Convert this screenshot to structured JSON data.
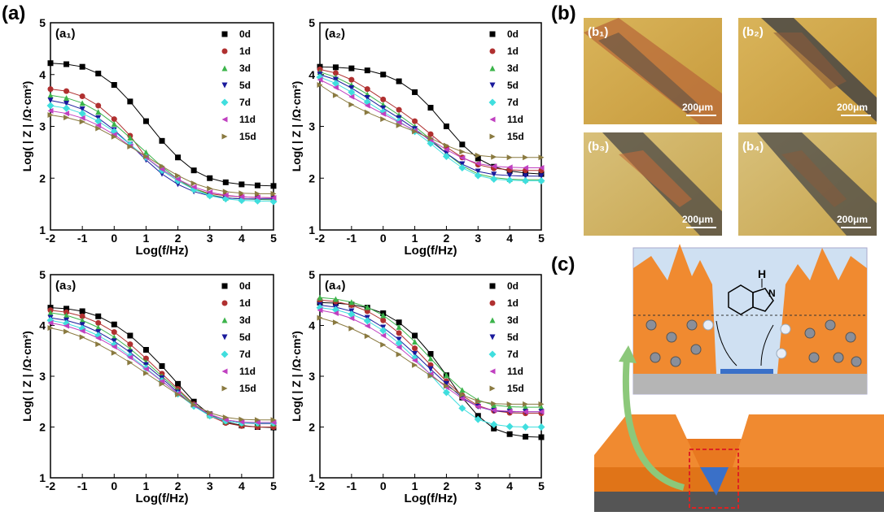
{
  "panels": {
    "a": "(a)",
    "b": "(b)",
    "c": "(c)"
  },
  "photos": [
    {
      "label": "(b₁)",
      "scale": "200μm"
    },
    {
      "label": "(b₂)",
      "scale": "200μm"
    },
    {
      "label": "(b₃)",
      "scale": "200μm"
    },
    {
      "label": "(b₄)",
      "scale": "200μm"
    }
  ],
  "diagram": {
    "atoms": [
      "H",
      "N"
    ]
  },
  "chart_data": [
    {
      "type": "line",
      "panel_label": "(a₁)",
      "xlabel": "Log(f/Hz)",
      "ylabel": "Log( | Z | /Ω·cm²)",
      "xlim": [
        -2,
        5
      ],
      "ylim": [
        1,
        5
      ],
      "xticks": [
        -2,
        -1,
        0,
        1,
        2,
        3,
        4,
        5
      ],
      "yticks": [
        1,
        2,
        3,
        4,
        5
      ],
      "x": [
        -2,
        -1.5,
        -1,
        -0.5,
        0,
        0.5,
        1,
        1.5,
        2,
        2.5,
        3,
        3.5,
        4,
        4.5,
        5
      ],
      "series": [
        {
          "name": "0d",
          "color": "#000000",
          "marker": "square",
          "values": [
            4.22,
            4.2,
            4.15,
            4.02,
            3.8,
            3.48,
            3.1,
            2.72,
            2.4,
            2.15,
            2.0,
            1.92,
            1.88,
            1.86,
            1.85
          ]
        },
        {
          "name": "1d",
          "color": "#b03030",
          "marker": "circle",
          "values": [
            3.72,
            3.68,
            3.58,
            3.4,
            3.14,
            2.82,
            2.4,
            2.15,
            1.95,
            1.8,
            1.7,
            1.66,
            1.64,
            1.63,
            1.62
          ]
        },
        {
          "name": "3d",
          "color": "#3cb44b",
          "marker": "triangle-up",
          "values": [
            3.6,
            3.55,
            3.45,
            3.28,
            3.05,
            2.78,
            2.5,
            2.22,
            1.98,
            1.8,
            1.68,
            1.62,
            1.6,
            1.59,
            1.58
          ]
        },
        {
          "name": "5d",
          "color": "#1a1a9c",
          "marker": "triangle-down",
          "values": [
            3.5,
            3.44,
            3.33,
            3.16,
            2.93,
            2.65,
            2.35,
            2.08,
            1.88,
            1.74,
            1.66,
            1.62,
            1.6,
            1.6,
            1.6
          ]
        },
        {
          "name": "7d",
          "color": "#40dede",
          "marker": "diamond",
          "values": [
            3.4,
            3.35,
            3.25,
            3.1,
            2.9,
            2.65,
            2.4,
            2.15,
            1.95,
            1.78,
            1.66,
            1.6,
            1.57,
            1.56,
            1.55
          ]
        },
        {
          "name": "11d",
          "color": "#c040c0",
          "marker": "triangle-left",
          "values": [
            3.3,
            3.25,
            3.16,
            3.02,
            2.84,
            2.62,
            2.4,
            2.17,
            1.98,
            1.83,
            1.73,
            1.67,
            1.64,
            1.63,
            1.62
          ]
        },
        {
          "name": "15d",
          "color": "#8a7a40",
          "marker": "triangle-right",
          "values": [
            3.22,
            3.17,
            3.09,
            2.96,
            2.8,
            2.61,
            2.42,
            2.23,
            2.05,
            1.9,
            1.8,
            1.74,
            1.71,
            1.7,
            1.7
          ]
        }
      ]
    },
    {
      "type": "line",
      "panel_label": "(a₂)",
      "xlabel": "Log(f/Hz)",
      "ylabel": "Log( | Z | /Ω·cm²)",
      "xlim": [
        -2,
        5
      ],
      "ylim": [
        1,
        5
      ],
      "xticks": [
        -2,
        -1,
        0,
        1,
        2,
        3,
        4,
        5
      ],
      "yticks": [
        1,
        2,
        3,
        4,
        5
      ],
      "x": [
        -2,
        -1.5,
        -1,
        -0.5,
        0,
        0.5,
        1,
        1.5,
        2,
        2.5,
        3,
        3.5,
        4,
        4.5,
        5
      ],
      "series": [
        {
          "name": "0d",
          "color": "#000000",
          "marker": "square",
          "values": [
            4.15,
            4.14,
            4.12,
            4.08,
            4.0,
            3.87,
            3.66,
            3.36,
            3.0,
            2.65,
            2.38,
            2.22,
            2.14,
            2.1,
            2.08
          ]
        },
        {
          "name": "1d",
          "color": "#b03030",
          "marker": "circle",
          "values": [
            4.1,
            4.03,
            3.9,
            3.72,
            3.52,
            3.32,
            3.1,
            2.85,
            2.6,
            2.4,
            2.26,
            2.19,
            2.16,
            2.15,
            2.15
          ]
        },
        {
          "name": "3d",
          "color": "#3cb44b",
          "marker": "triangle-up",
          "values": [
            4.05,
            3.95,
            3.8,
            3.62,
            3.42,
            3.22,
            3.0,
            2.75,
            2.48,
            2.24,
            2.08,
            2.01,
            1.98,
            1.97,
            1.97
          ]
        },
        {
          "name": "5d",
          "color": "#1a1a9c",
          "marker": "triangle-down",
          "values": [
            4.0,
            3.9,
            3.74,
            3.55,
            3.35,
            3.16,
            2.95,
            2.72,
            2.48,
            2.27,
            2.13,
            2.07,
            2.05,
            2.04,
            2.04
          ]
        },
        {
          "name": "7d",
          "color": "#40dede",
          "marker": "diamond",
          "values": [
            3.95,
            3.83,
            3.66,
            3.47,
            3.28,
            3.1,
            2.9,
            2.67,
            2.42,
            2.2,
            2.05,
            1.98,
            1.96,
            1.95,
            1.95
          ]
        },
        {
          "name": "11d",
          "color": "#c040c0",
          "marker": "triangle-left",
          "values": [
            3.9,
            3.75,
            3.57,
            3.4,
            3.24,
            3.08,
            2.92,
            2.74,
            2.55,
            2.39,
            2.28,
            2.23,
            2.21,
            2.2,
            2.2
          ]
        },
        {
          "name": "15d",
          "color": "#8a7a40",
          "marker": "triangle-right",
          "values": [
            3.8,
            3.6,
            3.42,
            3.27,
            3.14,
            3.02,
            2.9,
            2.77,
            2.63,
            2.51,
            2.44,
            2.41,
            2.4,
            2.4,
            2.4
          ]
        }
      ]
    },
    {
      "type": "line",
      "panel_label": "(a₃)",
      "xlabel": "Log(f/Hz)",
      "ylabel": "Log( | Z | /Ω·cm²)",
      "xlim": [
        -2,
        5
      ],
      "ylim": [
        1,
        5
      ],
      "xticks": [
        -2,
        -1,
        0,
        1,
        2,
        3,
        4,
        5
      ],
      "yticks": [
        1,
        2,
        3,
        4,
        5
      ],
      "x": [
        -2,
        -1.5,
        -1,
        -0.5,
        0,
        0.5,
        1,
        1.5,
        2,
        2.5,
        3,
        3.5,
        4,
        4.5,
        5
      ],
      "series": [
        {
          "name": "0d",
          "color": "#000000",
          "marker": "square",
          "values": [
            4.35,
            4.33,
            4.28,
            4.18,
            4.02,
            3.8,
            3.52,
            3.2,
            2.85,
            2.5,
            2.25,
            2.1,
            2.03,
            2.0,
            1.99
          ]
        },
        {
          "name": "1d",
          "color": "#b03030",
          "marker": "circle",
          "values": [
            4.3,
            4.26,
            4.18,
            4.05,
            3.87,
            3.63,
            3.35,
            3.05,
            2.75,
            2.45,
            2.22,
            2.08,
            2.02,
            2.0,
            2.0
          ]
        },
        {
          "name": "3d",
          "color": "#3cb44b",
          "marker": "triangle-up",
          "values": [
            4.25,
            4.2,
            4.1,
            3.96,
            3.77,
            3.54,
            3.28,
            3.0,
            2.72,
            2.44,
            2.23,
            2.12,
            2.08,
            2.07,
            2.07
          ]
        },
        {
          "name": "5d",
          "color": "#1a1a9c",
          "marker": "triangle-down",
          "values": [
            4.15,
            4.1,
            4.01,
            3.87,
            3.69,
            3.47,
            3.22,
            2.96,
            2.68,
            2.42,
            2.22,
            2.12,
            2.08,
            2.07,
            2.07
          ]
        },
        {
          "name": "7d",
          "color": "#40dede",
          "marker": "diamond",
          "values": [
            4.1,
            4.04,
            3.94,
            3.8,
            3.62,
            3.4,
            3.16,
            2.91,
            2.65,
            2.41,
            2.22,
            2.12,
            2.08,
            2.08,
            2.08
          ]
        },
        {
          "name": "11d",
          "color": "#c040c0",
          "marker": "triangle-left",
          "values": [
            4.05,
            3.99,
            3.89,
            3.75,
            3.58,
            3.37,
            3.14,
            2.9,
            2.66,
            2.43,
            2.25,
            2.14,
            2.1,
            2.09,
            2.09
          ]
        },
        {
          "name": "15d",
          "color": "#8a7a40",
          "marker": "triangle-right",
          "values": [
            3.95,
            3.88,
            3.77,
            3.63,
            3.46,
            3.27,
            3.06,
            2.85,
            2.64,
            2.44,
            2.28,
            2.19,
            2.15,
            2.14,
            2.14
          ]
        }
      ]
    },
    {
      "type": "line",
      "panel_label": "(a₄)",
      "xlabel": "Log(f/Hz)",
      "ylabel": "Log( | Z | /Ω·cm²)",
      "xlim": [
        -2,
        5
      ],
      "ylim": [
        1,
        5
      ],
      "xticks": [
        -2,
        -1,
        0,
        1,
        2,
        3,
        4,
        5
      ],
      "yticks": [
        1,
        2,
        3,
        4,
        5
      ],
      "x": [
        -2,
        -1.5,
        -1,
        -0.5,
        0,
        0.5,
        1,
        1.5,
        2,
        2.5,
        3,
        3.5,
        4,
        4.5,
        5
      ],
      "series": [
        {
          "name": "0d",
          "color": "#000000",
          "marker": "square",
          "values": [
            4.45,
            4.44,
            4.41,
            4.35,
            4.24,
            4.06,
            3.8,
            3.44,
            3.02,
            2.58,
            2.22,
            1.97,
            1.86,
            1.81,
            1.8
          ]
        },
        {
          "name": "1d",
          "color": "#b03030",
          "marker": "circle",
          "values": [
            4.5,
            4.47,
            4.4,
            4.28,
            4.1,
            3.85,
            3.55,
            3.22,
            2.9,
            2.62,
            2.42,
            2.32,
            2.28,
            2.27,
            2.27
          ]
        },
        {
          "name": "3d",
          "color": "#3cb44b",
          "marker": "triangle-up",
          "values": [
            4.55,
            4.52,
            4.46,
            4.36,
            4.2,
            3.97,
            3.68,
            3.35,
            3.02,
            2.73,
            2.53,
            2.43,
            2.4,
            2.39,
            2.39
          ]
        },
        {
          "name": "5d",
          "color": "#1a1a9c",
          "marker": "triangle-down",
          "values": [
            4.4,
            4.36,
            4.28,
            4.15,
            3.96,
            3.72,
            3.44,
            3.14,
            2.85,
            2.58,
            2.4,
            2.32,
            2.3,
            2.3,
            2.3
          ]
        },
        {
          "name": "7d",
          "color": "#40dede",
          "marker": "diamond",
          "values": [
            4.35,
            4.31,
            4.22,
            4.09,
            3.9,
            3.65,
            3.36,
            3.03,
            2.68,
            2.37,
            2.15,
            2.05,
            2.01,
            2.0,
            2.0
          ]
        },
        {
          "name": "11d",
          "color": "#c040c0",
          "marker": "triangle-left",
          "values": [
            4.3,
            4.24,
            4.14,
            3.99,
            3.8,
            3.57,
            3.31,
            3.04,
            2.78,
            2.56,
            2.4,
            2.33,
            2.31,
            2.3,
            2.3
          ]
        },
        {
          "name": "15d",
          "color": "#8a7a40",
          "marker": "triangle-right",
          "values": [
            4.15,
            4.06,
            3.94,
            3.79,
            3.62,
            3.43,
            3.22,
            3.01,
            2.81,
            2.63,
            2.51,
            2.46,
            2.45,
            2.45,
            2.45
          ]
        }
      ]
    }
  ]
}
